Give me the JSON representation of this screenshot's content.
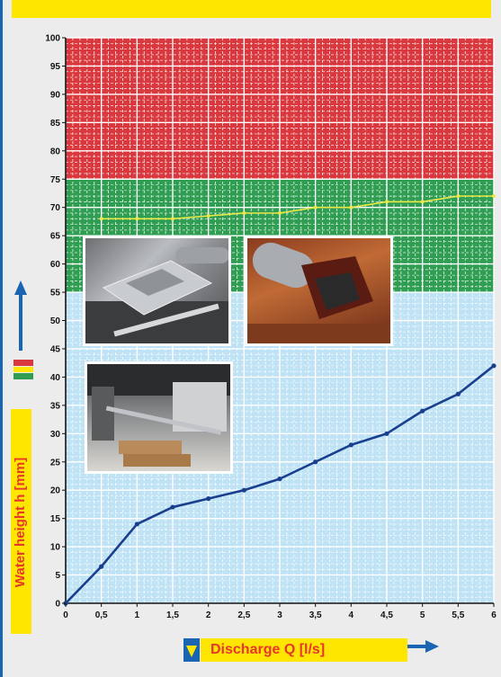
{
  "colors": {
    "banner": "#ffe600",
    "red_zone": "#d9393e",
    "green_zone": "#2f9d52",
    "blue_zone": "#bfe3f4",
    "main_curve": "#1a3f8e",
    "threshold_curve": "#ece84a",
    "label_text": "#e8362b",
    "arrow": "#1a64b4"
  },
  "chart_data": {
    "type": "line",
    "xlabel": "Discharge Q [l/s]",
    "ylabel": "Water height h [mm]",
    "xlim": [
      0,
      6
    ],
    "ylim": [
      0,
      100
    ],
    "x_ticks": [
      "0",
      "0,5",
      "1",
      "1,5",
      "2",
      "2,5",
      "3",
      "3,5",
      "4",
      "4,5",
      "5",
      "5,5",
      "6"
    ],
    "y_ticks": [
      "0",
      "5",
      "10",
      "15",
      "20",
      "25",
      "30",
      "35",
      "40",
      "45",
      "50",
      "55",
      "60",
      "65",
      "70",
      "75",
      "80",
      "85",
      "90",
      "95",
      "100"
    ],
    "grid": true,
    "zones": [
      {
        "color": "red",
        "from": 75,
        "to": 100
      },
      {
        "color": "green",
        "from": 55,
        "to": 75
      },
      {
        "color": "blue",
        "from": 0,
        "to": 55
      }
    ],
    "series": [
      {
        "style": "main",
        "x": [
          0,
          0.5,
          1,
          1.5,
          2,
          2.5,
          3,
          3.5,
          4,
          4.5,
          5,
          5.5,
          6
        ],
        "y": [
          0,
          6.5,
          14,
          17,
          18.5,
          20,
          22,
          25,
          28,
          30,
          34,
          37,
          42
        ]
      },
      {
        "style": "threshold",
        "x": [
          0.5,
          1,
          1.5,
          2,
          2.5,
          3,
          3.5,
          4,
          4.5,
          5,
          5.5,
          6
        ],
        "y": [
          68,
          68,
          68,
          68.5,
          69,
          69,
          70,
          70,
          71,
          71,
          72,
          72
        ]
      }
    ]
  }
}
